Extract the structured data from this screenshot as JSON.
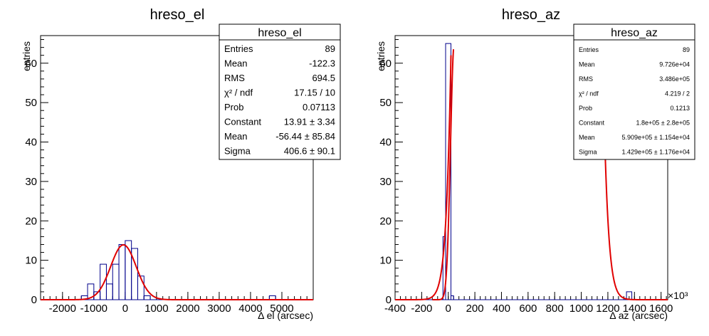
{
  "chart_data": [
    {
      "type": "histogram",
      "title": "hreso_el",
      "xlabel": "Δ el (arcsec)",
      "ylabel": "entries",
      "xlim": [
        -2700,
        6000
      ],
      "ylim": [
        0,
        67
      ],
      "x_ticks": [
        -2000,
        -1000,
        0,
        1000,
        2000,
        3000,
        4000,
        5000
      ],
      "y_ticks": [
        0,
        10,
        20,
        30,
        40,
        50,
        60
      ],
      "x_exponent": "",
      "bins": [
        {
          "x0": -1400,
          "x1": -1200,
          "count": 1
        },
        {
          "x0": -1200,
          "x1": -1000,
          "count": 4
        },
        {
          "x0": -1000,
          "x1": -800,
          "count": 2
        },
        {
          "x0": -800,
          "x1": -600,
          "count": 9
        },
        {
          "x0": -600,
          "x1": -400,
          "count": 4
        },
        {
          "x0": -400,
          "x1": -200,
          "count": 9
        },
        {
          "x0": -200,
          "x1": 0,
          "count": 14
        },
        {
          "x0": 0,
          "x1": 200,
          "count": 15
        },
        {
          "x0": 200,
          "x1": 400,
          "count": 13
        },
        {
          "x0": 400,
          "x1": 600,
          "count": 6
        },
        {
          "x0": 600,
          "x1": 800,
          "count": 1
        },
        {
          "x0": 4600,
          "x1": 4800,
          "count": 1
        }
      ],
      "fit": {
        "type": "gaus",
        "constant": 13.91,
        "mean": -56.44,
        "sigma": 406.6
      },
      "stats": {
        "title": "hreso_el",
        "rows": [
          {
            "label": "Entries",
            "value": "89"
          },
          {
            "label": "Mean",
            "value": "-122.3"
          },
          {
            "label": "RMS",
            "value": "694.5"
          },
          {
            "label": "χ² / ndf",
            "value": "17.15 / 10"
          },
          {
            "label": "Prob",
            "value": "0.07113"
          },
          {
            "label": "Constant",
            "value": "13.91 ± 3.34"
          },
          {
            "label": "Mean",
            "value": "-56.44 ± 85.84"
          },
          {
            "label": "Sigma",
            "value": "406.6 ± 90.1"
          }
        ]
      },
      "colors": {
        "histogram": "#00008b",
        "fit": "#e00000"
      }
    },
    {
      "type": "histogram",
      "title": "hreso_az",
      "xlabel": "Δ az (arcsec)",
      "ylabel": "entries",
      "xlim": [
        -400000,
        1650000
      ],
      "ylim": [
        0,
        67
      ],
      "x_ticks": [
        -400,
        -200,
        0,
        200,
        400,
        600,
        800,
        1000,
        1200,
        1400,
        1600
      ],
      "y_ticks": [
        0,
        10,
        20,
        30,
        40,
        50,
        60
      ],
      "x_exponent": "×10³",
      "bins": [
        {
          "x0": -40000,
          "x1": -20000,
          "count": 16
        },
        {
          "x0": -20000,
          "x1": 20000,
          "count": 65
        },
        {
          "x0": 20000,
          "x1": 40000,
          "count": 1
        },
        {
          "x0": 1340000,
          "x1": 1380000,
          "count": 2
        }
      ],
      "fit": {
        "type": "gaus",
        "constant": 180000,
        "mean": 590900,
        "sigma": 142900
      },
      "stats": {
        "title": "hreso_az",
        "rows": [
          {
            "label": "Entries",
            "value": "89"
          },
          {
            "label": "Mean",
            "value": "9.726e+04"
          },
          {
            "label": "RMS",
            "value": "3.486e+05"
          },
          {
            "label": "χ² / ndf",
            "value": "4.219 / 2"
          },
          {
            "label": "Prob",
            "value": "0.1213"
          },
          {
            "label": "Constant",
            "value": "1.8e+05  ± 2.8e+05"
          },
          {
            "label": "Mean",
            "value": "5.909e+05  ± 1.154e+04"
          },
          {
            "label": "Sigma",
            "value": "1.429e+05  ± 1.176e+04"
          }
        ]
      },
      "colors": {
        "histogram": "#00008b",
        "fit": "#e00000"
      }
    }
  ]
}
